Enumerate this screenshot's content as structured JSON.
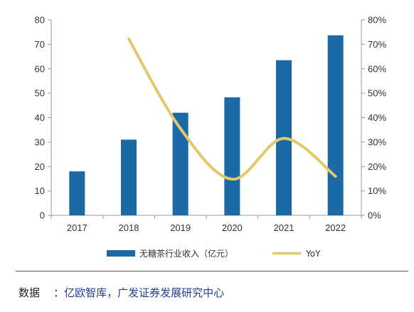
{
  "colors": {
    "bar": "#1c6aa5",
    "line": "#e3c86b",
    "axis": "#999999"
  },
  "chart_data": {
    "type": "bar",
    "categories": [
      "2017",
      "2018",
      "2019",
      "2020",
      "2021",
      "2022"
    ],
    "series": [
      {
        "name": "无糖茶行业收入（亿元）",
        "type": "bar",
        "axis": "left",
        "values": [
          18,
          31,
          42,
          48.3,
          63.5,
          73.7
        ]
      },
      {
        "name": "YoY",
        "type": "line",
        "axis": "right",
        "smooth": true,
        "values": [
          null,
          72.2,
          35.5,
          14.8,
          31.5,
          16
        ]
      }
    ],
    "y_left": {
      "ylim": [
        0,
        80
      ],
      "ticks": [
        "0",
        "10",
        "20",
        "30",
        "40",
        "50",
        "60",
        "70",
        "80"
      ]
    },
    "y_right": {
      "ylim": [
        0,
        80
      ],
      "ticks": [
        "0%",
        "10%",
        "20%",
        "30%",
        "40%",
        "50%",
        "60%",
        "70%",
        "80%"
      ]
    },
    "legend_position": "bottom",
    "grid": false
  },
  "source": {
    "label": "数据",
    "separator": "：",
    "text": "亿欧智库，广发证券发展研究中心"
  }
}
